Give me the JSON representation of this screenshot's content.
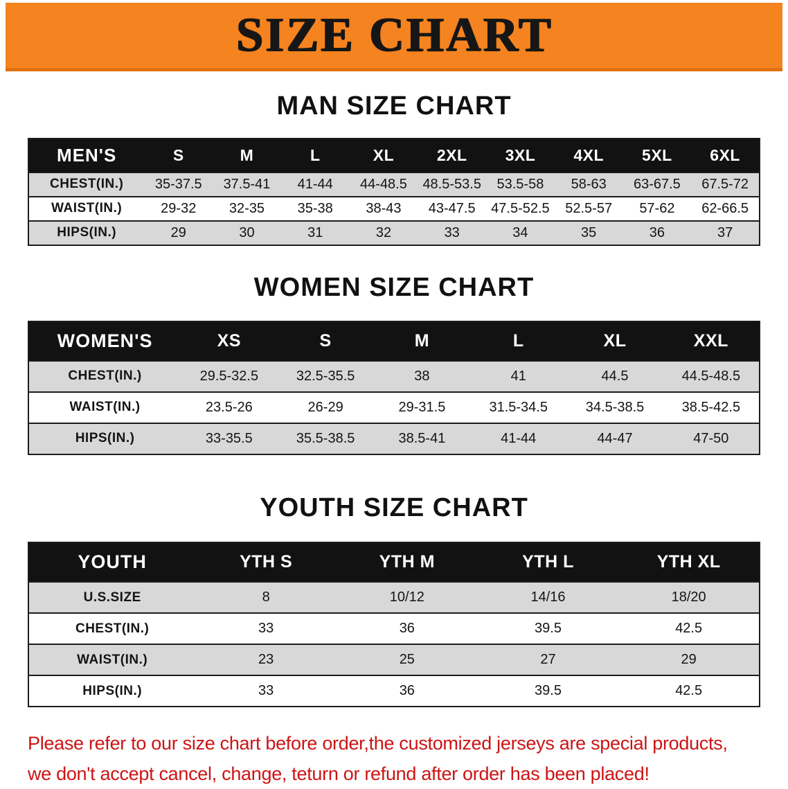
{
  "banner": {
    "title": "SIZE CHART"
  },
  "sections": [
    {
      "heading": "MAN SIZE CHART",
      "table": {
        "header": [
          "MEN'S",
          "S",
          "M",
          "L",
          "XL",
          "2XL",
          "3XL",
          "4XL",
          "5XL",
          "6XL"
        ],
        "rows": [
          [
            "CHEST(IN.)",
            "35-37.5",
            "37.5-41",
            "41-44",
            "44-48.5",
            "48.5-53.5",
            "53.5-58",
            "58-63",
            "63-67.5",
            "67.5-72"
          ],
          [
            "WAIST(IN.)",
            "29-32",
            "32-35",
            "35-38",
            "38-43",
            "43-47.5",
            "47.5-52.5",
            "52.5-57",
            "57-62",
            "62-66.5"
          ],
          [
            "HIPS(IN.)",
            "29",
            "30",
            "31",
            "32",
            "33",
            "34",
            "35",
            "36",
            "37"
          ]
        ]
      }
    },
    {
      "heading": "WOMEN SIZE CHART",
      "table": {
        "header": [
          "WOMEN'S",
          "XS",
          "S",
          "M",
          "L",
          "XL",
          "XXL"
        ],
        "rows": [
          [
            "CHEST(IN.)",
            "29.5-32.5",
            "32.5-35.5",
            "38",
            "41",
            "44.5",
            "44.5-48.5"
          ],
          [
            "WAIST(IN.)",
            "23.5-26",
            "26-29",
            "29-31.5",
            "31.5-34.5",
            "34.5-38.5",
            "38.5-42.5"
          ],
          [
            "HIPS(IN.)",
            "33-35.5",
            "35.5-38.5",
            "38.5-41",
            "41-44",
            "44-47",
            "47-50"
          ]
        ]
      }
    },
    {
      "heading": "YOUTH SIZE CHART",
      "table": {
        "header": [
          "YOUTH",
          "YTH S",
          "YTH M",
          "YTH L",
          "YTH XL"
        ],
        "rows": [
          [
            "U.S.SIZE",
            "8",
            "10/12",
            "14/16",
            "18/20"
          ],
          [
            "CHEST(IN.)",
            "33",
            "36",
            "39.5",
            "42.5"
          ],
          [
            "WAIST(IN.)",
            "23",
            "25",
            "27",
            "29"
          ],
          [
            "HIPS(IN.)",
            "33",
            "36",
            "39.5",
            "42.5"
          ]
        ]
      }
    }
  ],
  "disclaimer": {
    "lines": [
      "Please refer to our size chart before order,the customized jerseys are special products,",
      "we don't accept cancel, change, teturn or refund after order has been placed!"
    ]
  },
  "colors": {
    "banner_orange": "#f5831f",
    "table_header_black": "#121212",
    "row_stripe_gray": "#d8d8d8",
    "disclaimer_red": "#cc1414"
  }
}
